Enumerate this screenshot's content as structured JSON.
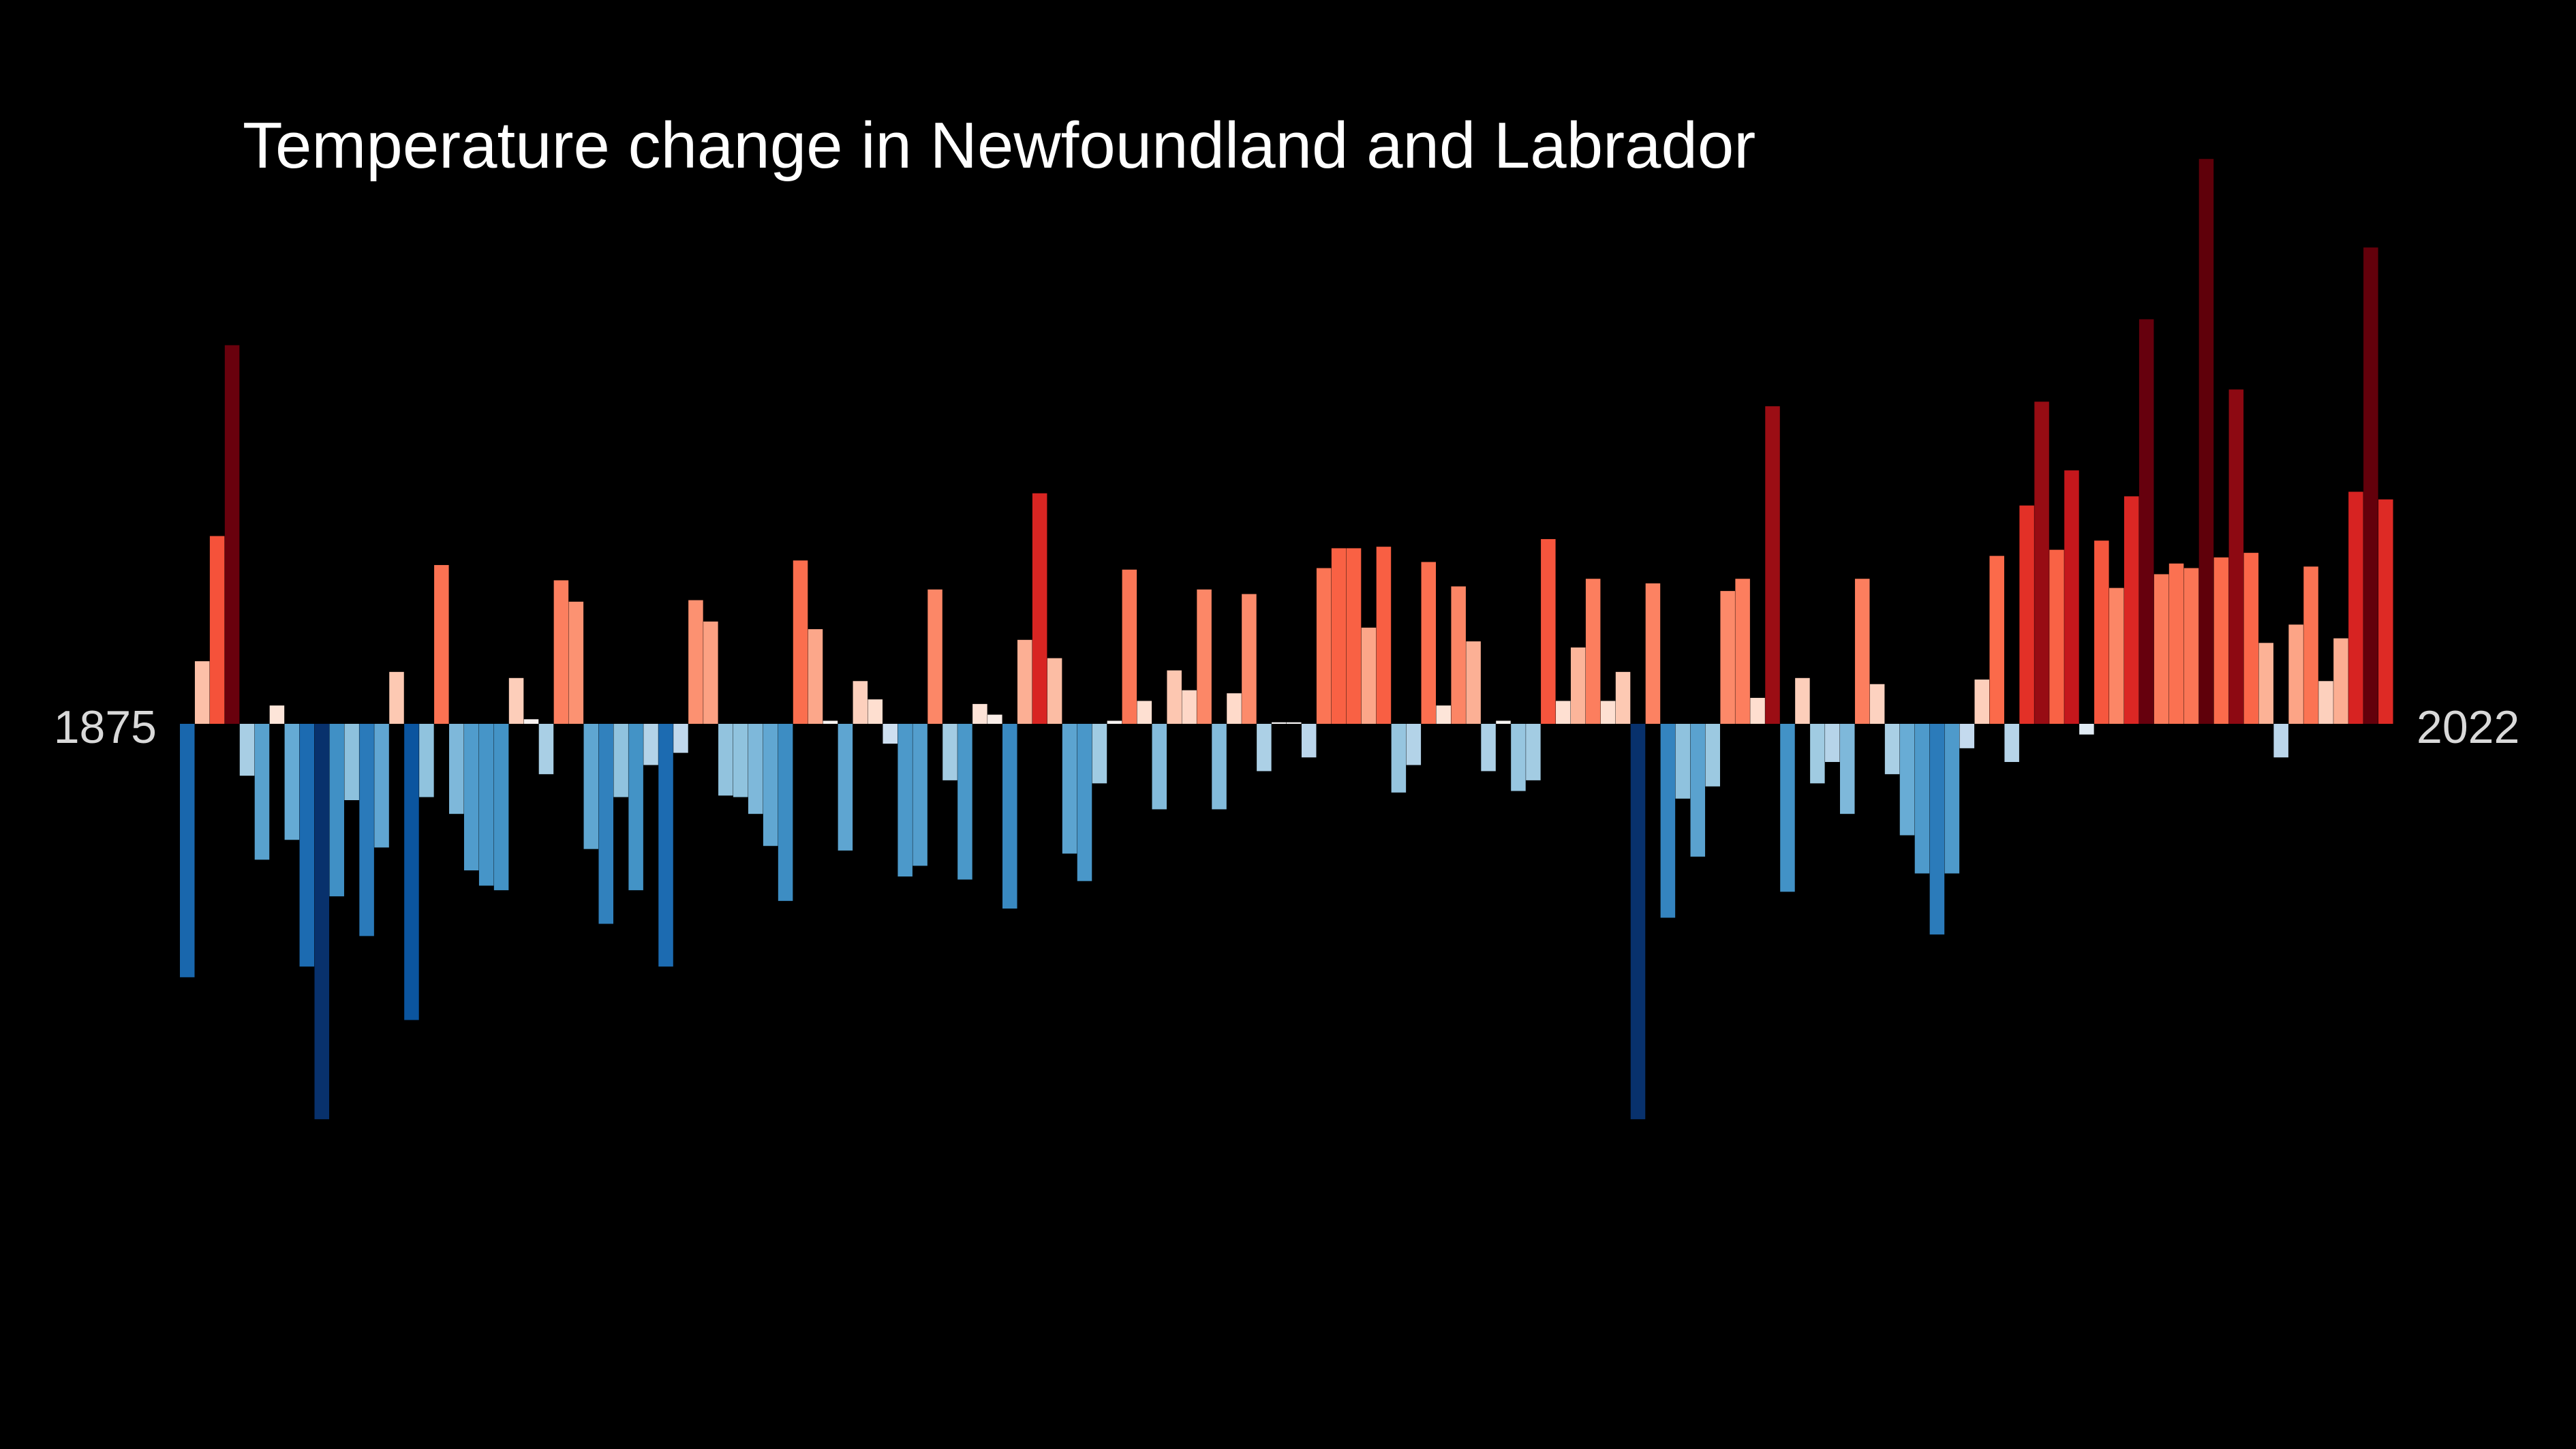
{
  "chart_data": {
    "type": "bar",
    "title": "Temperature change in Newfoundland and Labrador",
    "xlabel": "",
    "ylabel": "",
    "x_start_label": "1875",
    "x_end_label": "2022",
    "grid": false,
    "legend": "none",
    "background": "#000000",
    "colormap": "RdBu_r",
    "ylim": [
      -2.6,
      3.7
    ],
    "categories": [
      1875,
      1876,
      1877,
      1878,
      1879,
      1880,
      1881,
      1882,
      1883,
      1884,
      1885,
      1886,
      1887,
      1888,
      1889,
      1890,
      1891,
      1892,
      1893,
      1894,
      1895,
      1896,
      1897,
      1898,
      1899,
      1900,
      1901,
      1902,
      1903,
      1904,
      1905,
      1906,
      1907,
      1908,
      1909,
      1910,
      1911,
      1912,
      1913,
      1914,
      1915,
      1916,
      1917,
      1918,
      1919,
      1920,
      1921,
      1922,
      1923,
      1924,
      1925,
      1926,
      1927,
      1928,
      1929,
      1930,
      1931,
      1932,
      1933,
      1934,
      1935,
      1936,
      1937,
      1938,
      1939,
      1940,
      1941,
      1942,
      1943,
      1944,
      1945,
      1946,
      1947,
      1948,
      1949,
      1950,
      1951,
      1952,
      1953,
      1954,
      1955,
      1956,
      1957,
      1958,
      1959,
      1960,
      1961,
      1962,
      1963,
      1964,
      1965,
      1966,
      1967,
      1968,
      1969,
      1970,
      1971,
      1972,
      1973,
      1974,
      1975,
      1976,
      1977,
      1978,
      1979,
      1980,
      1981,
      1982,
      1983,
      1984,
      1985,
      1986,
      1987,
      1988,
      1989,
      1990,
      1991,
      1992,
      1993,
      1994,
      1995,
      1996,
      1997,
      1998,
      1999,
      2000,
      2001,
      2002,
      2003,
      2004,
      2005,
      2006,
      2007,
      2008,
      2009,
      2010,
      2011,
      2012,
      2013,
      2014,
      2015,
      2016,
      2017,
      2018,
      2019,
      2020,
      2021,
      2022
    ],
    "values": [
      -1.66,
      0.41,
      1.23,
      2.48,
      -0.34,
      -0.89,
      0.12,
      -0.76,
      -1.59,
      -2.59,
      -1.13,
      -0.5,
      -1.39,
      -0.81,
      0.34,
      -1.94,
      -0.48,
      1.04,
      -0.59,
      -0.96,
      -1.06,
      -1.09,
      0.3,
      0.03,
      -0.33,
      0.94,
      0.8,
      -0.82,
      -1.31,
      -0.48,
      -1.09,
      -0.27,
      -1.59,
      -0.19,
      0.81,
      0.67,
      -0.47,
      -0.48,
      -0.59,
      -0.8,
      -1.16,
      1.07,
      0.62,
      0.02,
      -0.83,
      0.28,
      0.16,
      -0.13,
      -1.0,
      -0.93,
      0.88,
      -0.37,
      -1.02,
      0.13,
      0.06,
      -1.21,
      0.55,
      1.51,
      0.43,
      -0.85,
      -1.03,
      -0.39,
      0.02,
      1.01,
      0.15,
      -0.56,
      0.35,
      0.22,
      0.88,
      -0.56,
      0.2,
      0.85,
      -0.31,
      0.01,
      0.01,
      -0.22,
      1.02,
      1.15,
      1.15,
      0.63,
      1.16,
      -0.45,
      -0.27,
      1.06,
      0.12,
      0.9,
      0.54,
      -0.31,
      0.02,
      -0.44,
      -0.37,
      1.21,
      0.15,
      0.5,
      0.95,
      0.15,
      0.34,
      -2.59,
      0.92,
      -1.27,
      -0.49,
      -0.87,
      -0.41,
      0.87,
      0.95,
      0.17,
      2.08,
      -1.1,
      0.3,
      -0.39,
      -0.25,
      -0.59,
      0.95,
      0.26,
      -0.33,
      -0.73,
      -0.98,
      -1.38,
      -0.98,
      -0.16,
      0.29,
      1.1,
      -0.25,
      1.43,
      2.11,
      1.14,
      1.66,
      -0.07,
      1.2,
      0.89,
      1.49,
      2.65,
      0.98,
      1.05,
      1.02,
      3.7,
      1.09,
      2.19,
      1.12,
      0.53,
      -0.22,
      0.65,
      1.03,
      0.28,
      0.56,
      1.52,
      3.12,
      1.47
    ],
    "zero_line": 0
  }
}
